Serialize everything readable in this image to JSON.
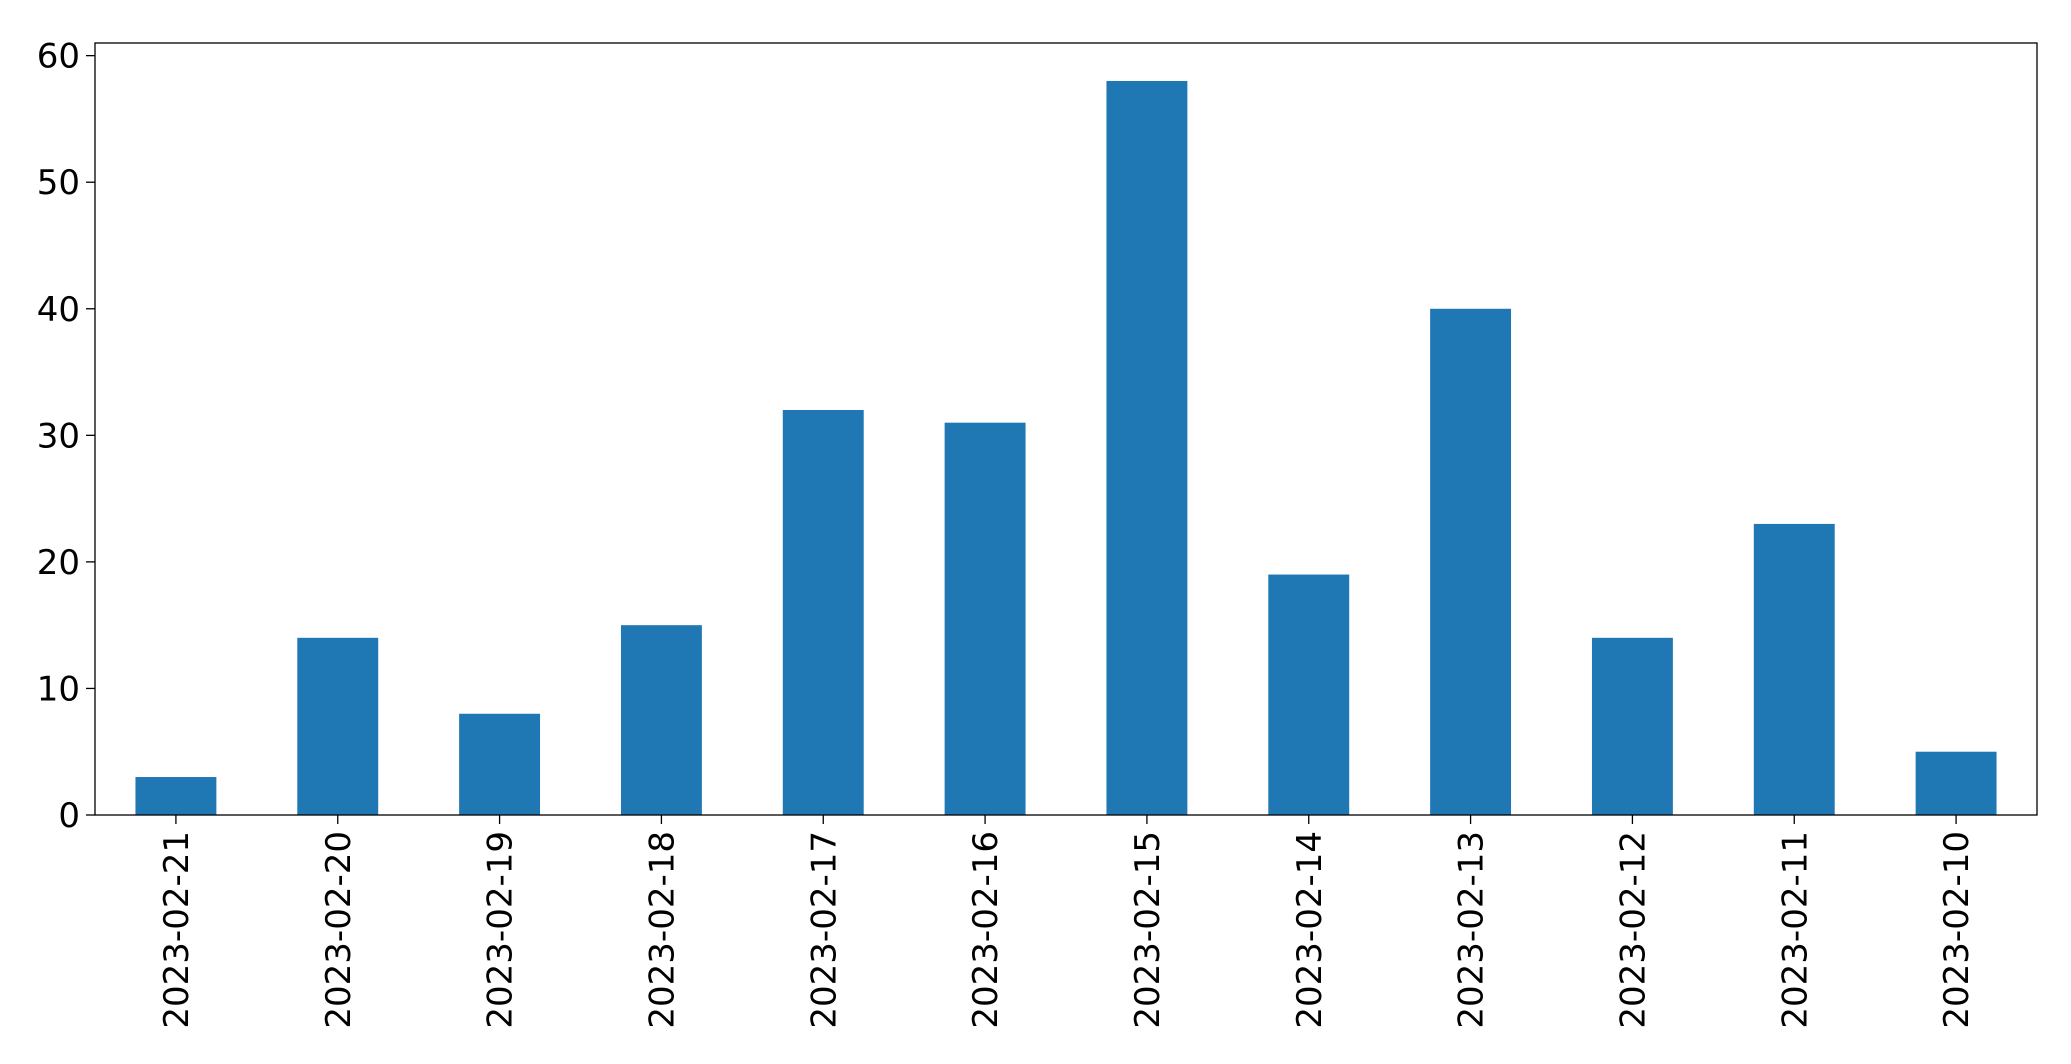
{
  "chart_data": {
    "type": "bar",
    "categories": [
      "2023-02-21",
      "2023-02-20",
      "2023-02-19",
      "2023-02-18",
      "2023-02-17",
      "2023-02-16",
      "2023-02-15",
      "2023-02-14",
      "2023-02-13",
      "2023-02-12",
      "2023-02-11",
      "2023-02-10"
    ],
    "values": [
      3,
      14,
      8,
      15,
      32,
      31,
      58,
      19,
      40,
      14,
      23,
      5
    ],
    "title": "",
    "xlabel": "",
    "ylabel": "",
    "ylim": [
      0,
      61
    ],
    "yticks": [
      0,
      10,
      20,
      30,
      40,
      50,
      60
    ],
    "grid": false,
    "legend": "none",
    "bar_color": "#1f77b4"
  }
}
